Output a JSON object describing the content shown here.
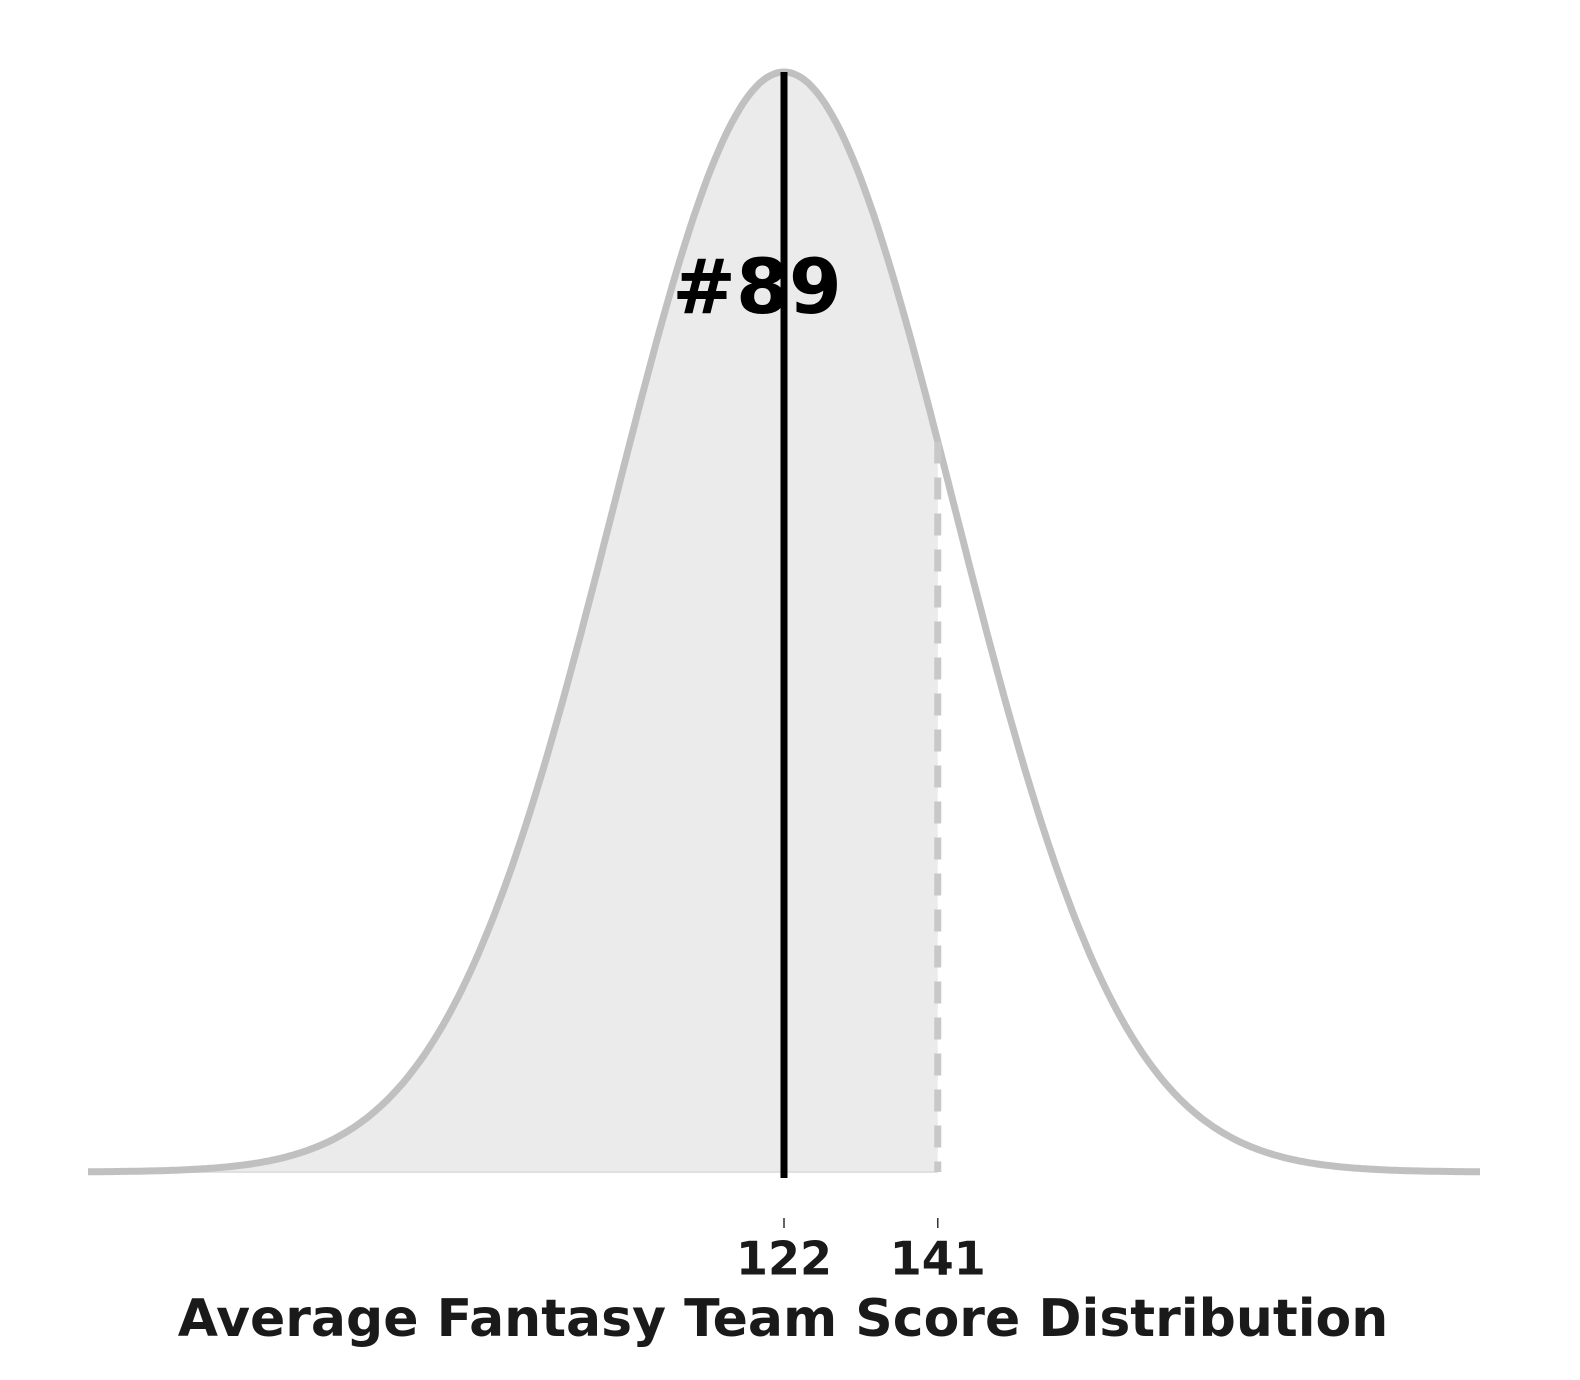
{
  "chart_data": {
    "type": "density",
    "mean": 122,
    "sd": 21,
    "marker": 141,
    "annotation": "#89",
    "xlabel": "Average Fantasy Team Score Distribution",
    "xlim": [
      36,
      208
    ],
    "xticks": [
      122,
      141
    ],
    "curve_color": "#c0c0c0",
    "fill_color": "#ebebeb",
    "mean_color": "#000000",
    "marker_color": "#c8c8c8"
  }
}
